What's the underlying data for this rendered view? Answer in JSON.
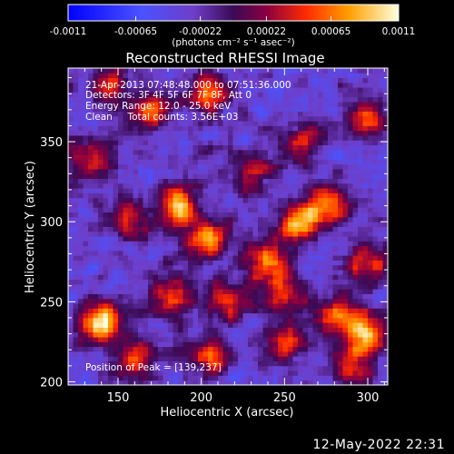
{
  "chart_data": {
    "type": "heatmap",
    "title": "Reconstructed RHESSI Image",
    "xlabel": "Heliocentric X (arcsec)",
    "ylabel": "Heliocentric Y (arcsec)",
    "xlim": [
      120,
      312
    ],
    "ylim": [
      198,
      396
    ],
    "x_ticks": [
      150,
      200,
      250,
      300
    ],
    "y_ticks": [
      200,
      250,
      300,
      350
    ],
    "colorbar": {
      "range": [
        -0.0011,
        0.0011
      ],
      "tick_labels": [
        "-0.0011",
        "-0.00065",
        "-0.00022",
        "0.00022",
        "0.00065",
        "0.0011"
      ],
      "tick_values": [
        -0.0011,
        -0.00065,
        -0.00022,
        0.00022,
        0.00065,
        0.0011
      ],
      "label": "(photons cm⁻² s⁻¹ asec⁻²)"
    },
    "annotations": [
      "21-Apr-2013 07:48:48.000 to 07:51:36.000",
      "Detectors: 3F 4F 5F 6F 7F 8F, Att 0",
      "Energy Range: 12.0 - 25.0 keV",
      "Clean     Total counts: 3.56E+03"
    ],
    "peak_label": "Position of Peak = [139,237]",
    "peak": [
      139,
      237
    ],
    "blobs": [
      {
        "x": 139,
        "y": 237,
        "value": 0.0011
      },
      {
        "x": 185,
        "y": 310,
        "value": 0.0009
      },
      {
        "x": 205,
        "y": 290,
        "value": 0.0008
      },
      {
        "x": 258,
        "y": 300,
        "value": 0.0008
      },
      {
        "x": 275,
        "y": 310,
        "value": 0.0007
      },
      {
        "x": 205,
        "y": 380,
        "value": 0.0007
      },
      {
        "x": 170,
        "y": 370,
        "value": 0.0006
      },
      {
        "x": 240,
        "y": 275,
        "value": 0.0007
      },
      {
        "x": 300,
        "y": 230,
        "value": 0.0008
      },
      {
        "x": 283,
        "y": 240,
        "value": 0.0006
      },
      {
        "x": 250,
        "y": 255,
        "value": 0.0006
      },
      {
        "x": 215,
        "y": 250,
        "value": 0.0005
      },
      {
        "x": 182,
        "y": 255,
        "value": 0.0006
      },
      {
        "x": 155,
        "y": 300,
        "value": 0.0005
      },
      {
        "x": 160,
        "y": 215,
        "value": 0.0006
      },
      {
        "x": 205,
        "y": 215,
        "value": 0.0005
      },
      {
        "x": 250,
        "y": 225,
        "value": 0.0005
      },
      {
        "x": 290,
        "y": 210,
        "value": 0.0005
      },
      {
        "x": 300,
        "y": 365,
        "value": 0.0005
      },
      {
        "x": 135,
        "y": 340,
        "value": 0.0005
      },
      {
        "x": 260,
        "y": 350,
        "value": 0.0004
      },
      {
        "x": 300,
        "y": 275,
        "value": 0.0005
      },
      {
        "x": 230,
        "y": 330,
        "value": 0.0004
      },
      {
        "x": 145,
        "y": 385,
        "value": 0.0004
      }
    ]
  },
  "footer": {
    "date": "12-May-2022 22:31"
  }
}
